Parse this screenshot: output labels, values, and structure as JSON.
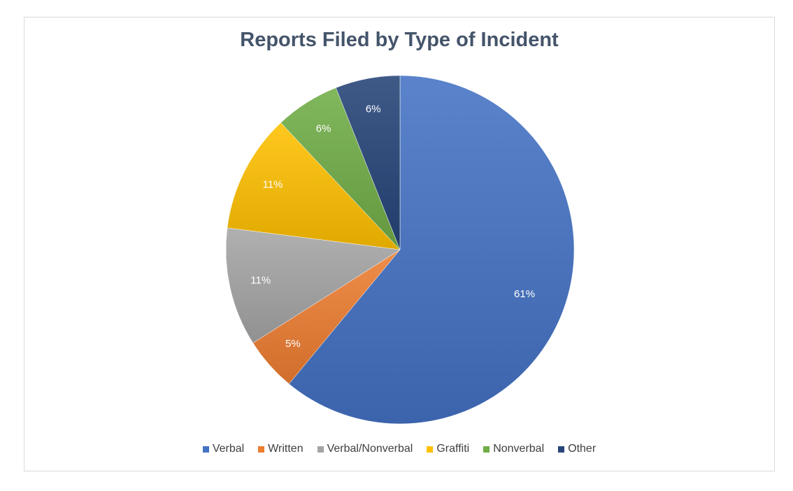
{
  "chart_data": {
    "type": "pie",
    "title": "Reports Filed by Type of Incident",
    "categories": [
      "Verbal",
      "Written",
      "Verbal/Nonverbal",
      "Graffiti",
      "Nonverbal",
      "Other"
    ],
    "values": [
      61,
      5,
      11,
      11,
      6,
      6
    ],
    "value_labels": [
      "61%",
      "5%",
      "11%",
      "11%",
      "6%",
      "6%"
    ],
    "colors": [
      "#4472c4",
      "#ed7d31",
      "#a5a5a5",
      "#ffc000",
      "#70ad47",
      "#264478"
    ],
    "legend_position": "bottom",
    "start_angle": "top",
    "direction": "clockwise"
  }
}
